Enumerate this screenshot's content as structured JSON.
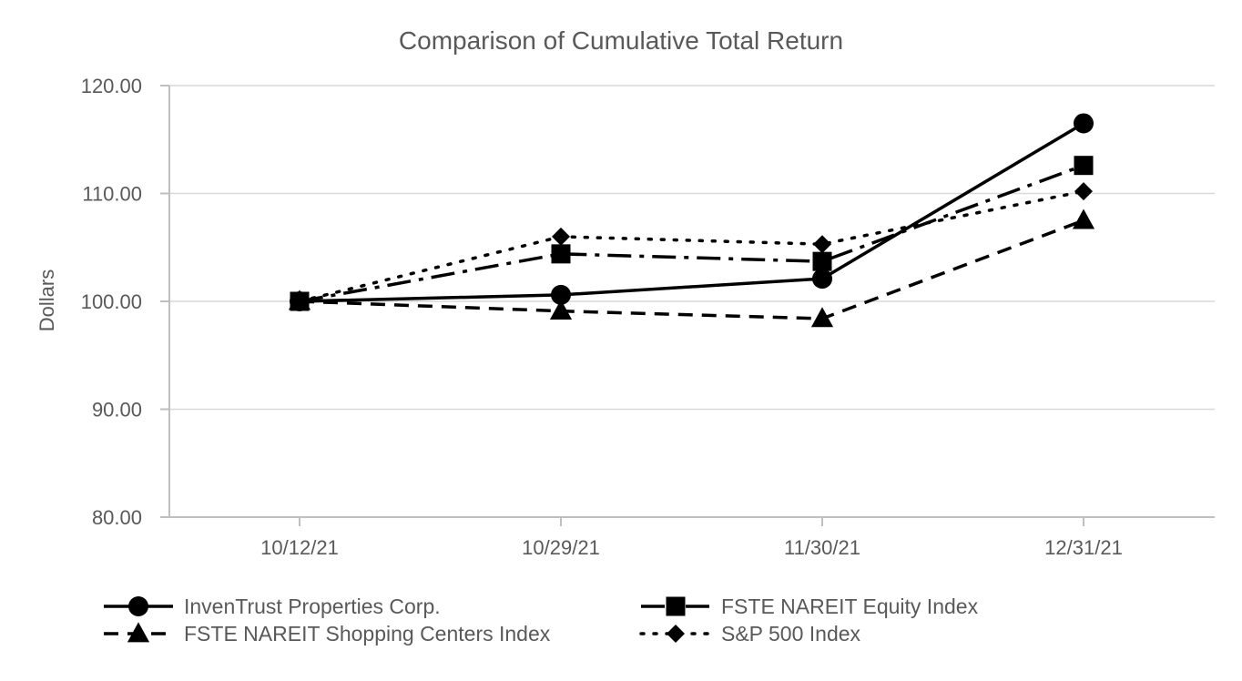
{
  "chart_data": {
    "type": "line",
    "title": "Comparison of Cumulative Total Return",
    "xlabel": "",
    "ylabel": "Dollars",
    "categories": [
      "10/12/21",
      "10/29/21",
      "11/30/21",
      "12/31/21"
    ],
    "ylim": [
      80,
      120
    ],
    "yticks": [
      "80.00",
      "90.00",
      "100.00",
      "110.00",
      "120.00"
    ],
    "grid": true,
    "legend_position": "bottom",
    "series": [
      {
        "name": "InvenTrust Properties Corp.",
        "values": [
          100.0,
          100.6,
          102.1,
          116.5
        ],
        "dash": "solid",
        "marker": "circle",
        "color": "#000000"
      },
      {
        "name": "FSTE NAREIT Equity Index",
        "values": [
          100.0,
          104.4,
          103.7,
          112.6
        ],
        "dash": "dashdot",
        "marker": "square",
        "color": "#000000"
      },
      {
        "name": "FSTE NAREIT Shopping Centers Index",
        "values": [
          100.0,
          99.1,
          98.4,
          107.5
        ],
        "dash": "dashed",
        "marker": "triangle",
        "color": "#000000"
      },
      {
        "name": "S&P 500 Index",
        "values": [
          100.0,
          106.0,
          105.3,
          110.2
        ],
        "dash": "dotted",
        "marker": "diamond",
        "color": "#000000"
      }
    ]
  }
}
